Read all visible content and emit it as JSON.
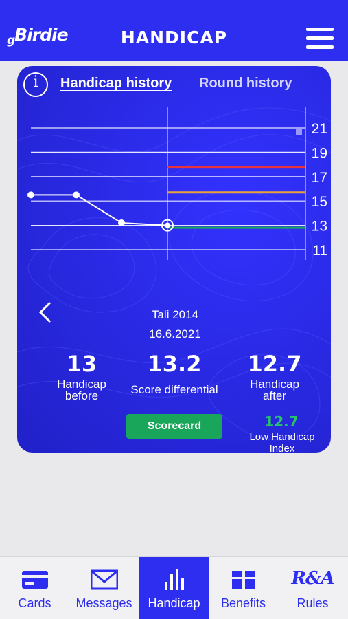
{
  "app": {
    "logo_text": "Birdie",
    "logo_prefix": "g",
    "title": "HANDICAP"
  },
  "tabs": {
    "active": "Handicap history",
    "inactive": "Round history"
  },
  "chart_data": {
    "type": "line",
    "y_ticks": [
      21,
      19,
      17,
      15,
      13,
      11
    ],
    "ylim": [
      11,
      21
    ],
    "grid": true,
    "series": [
      {
        "values": [
          15.5,
          15.5,
          13.2,
          13.0
        ]
      }
    ],
    "reference_lines": [
      {
        "value": 17.8,
        "color": "#e8323c"
      },
      {
        "value": 15.7,
        "color": "#e8a23c"
      },
      {
        "value": 12.8,
        "color": "#1aa65a"
      }
    ]
  },
  "round": {
    "name": "Tali 2014",
    "date": "16.6.2021",
    "handicap_before": {
      "value": "13",
      "label_1": "Handicap",
      "label_2": "before"
    },
    "score_differential": {
      "value": "13.2",
      "label": "Score differential"
    },
    "handicap_after": {
      "value": "12.7",
      "label_1": "Handicap",
      "label_2": "after"
    }
  },
  "scorecard_label": "Scorecard",
  "low_index": {
    "value": "12.7",
    "label": "Low Handicap Index"
  },
  "bottom_nav": [
    {
      "label": "Cards",
      "icon": "card-icon"
    },
    {
      "label": "Messages",
      "icon": "envelope-icon"
    },
    {
      "label": "Handicap",
      "icon": "bar-chart-icon",
      "active": true
    },
    {
      "label": "Benefits",
      "icon": "gift-icon"
    },
    {
      "label": "Rules",
      "icon": "ra-logo-icon",
      "icon_text": "R&A"
    }
  ],
  "colors": {
    "brand": "#2e2ef0",
    "green": "#1aa65a",
    "red": "#e8323c",
    "amber": "#e8a23c"
  }
}
